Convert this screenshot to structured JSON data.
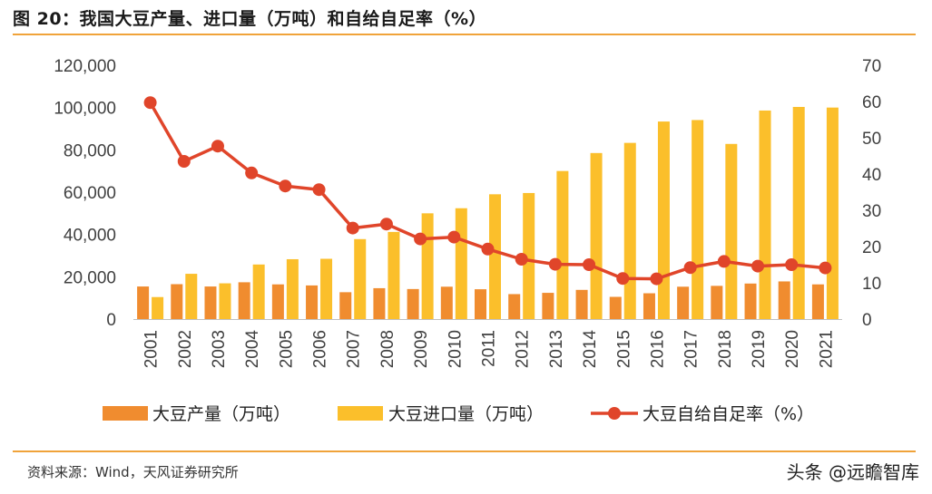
{
  "header": {
    "title": "图 20：我国大豆产量、进口量（万吨）和自给自足率（%）"
  },
  "footer": {
    "source": "资料来源：Wind，天风证券研究所",
    "watermark": "头条 @远瞻智库"
  },
  "colors": {
    "production": "#f08c2f",
    "imports": "#fbbf2b",
    "ratio": "#e0452a",
    "rule": "#f0a33a",
    "axis": "#bfbfbf"
  },
  "chart_data": {
    "type": "bar",
    "categories": [
      "2001",
      "2002",
      "2003",
      "2004",
      "2005",
      "2006",
      "2007",
      "2008",
      "2009",
      "2010",
      "2011",
      "2012",
      "2013",
      "2014",
      "2015",
      "2016",
      "2017",
      "2018",
      "2019",
      "2020",
      "2021"
    ],
    "series": [
      {
        "name": "大豆产量（万吨）",
        "type": "bar",
        "axis": "left",
        "values": [
          15400,
          16500,
          15400,
          17400,
          16400,
          15900,
          12700,
          14600,
          14200,
          15300,
          14100,
          11800,
          12400,
          13800,
          10500,
          12200,
          15300,
          15700,
          16800,
          17800,
          16400
        ]
      },
      {
        "name": "大豆进口量（万吨）",
        "type": "bar",
        "axis": "left",
        "values": [
          10400,
          21400,
          16900,
          25800,
          28300,
          28500,
          37800,
          41200,
          50000,
          52400,
          59000,
          59600,
          70000,
          78500,
          83300,
          93400,
          94100,
          82800,
          98600,
          100300,
          100000
        ]
      },
      {
        "name": "大豆自给自足率（%）",
        "type": "line",
        "axis": "right",
        "values": [
          59.7,
          43.5,
          47.7,
          40.3,
          36.7,
          35.7,
          25.1,
          26.2,
          22.1,
          22.6,
          19.3,
          16.5,
          15.1,
          15.0,
          11.2,
          11.1,
          14.2,
          15.9,
          14.6,
          15.0,
          14.1
        ]
      }
    ],
    "y_left": {
      "ylim": [
        0,
        120000
      ],
      "ticks": [
        "0",
        "20,000",
        "40,000",
        "60,000",
        "80,000",
        "100,000",
        "120,000"
      ]
    },
    "y_right": {
      "ylim": [
        0,
        70
      ],
      "ticks": [
        "0",
        "10",
        "20",
        "30",
        "40",
        "50",
        "60",
        "70"
      ]
    },
    "legend_position": "bottom",
    "grid": false
  }
}
